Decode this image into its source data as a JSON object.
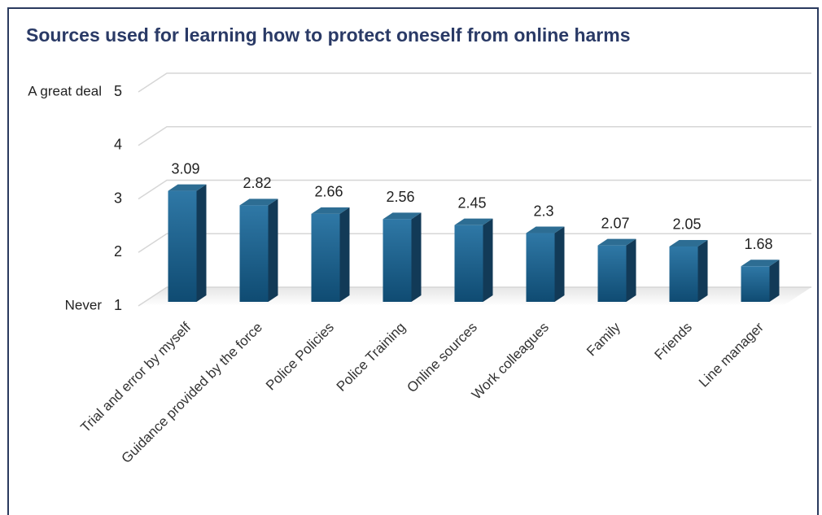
{
  "chart_data": {
    "type": "bar3d",
    "title": "Sources used for learning how to protect oneself from online harms",
    "categories": [
      "Trial and error by myself",
      "Guidance provided by the force",
      "Police Policies",
      "Police Training",
      "Online sources",
      "Work colleagues",
      "Family",
      "Friends",
      "Line manager"
    ],
    "values": [
      3.09,
      2.82,
      2.66,
      2.56,
      2.45,
      2.3,
      2.07,
      2.05,
      1.68
    ],
    "color": "#1a5c86",
    "ylim": [
      1,
      5
    ],
    "yticks": [
      1,
      2,
      3,
      4,
      5
    ],
    "y_end_labels": {
      "top": "A great deal",
      "bottom": "Never"
    },
    "grid": true
  }
}
